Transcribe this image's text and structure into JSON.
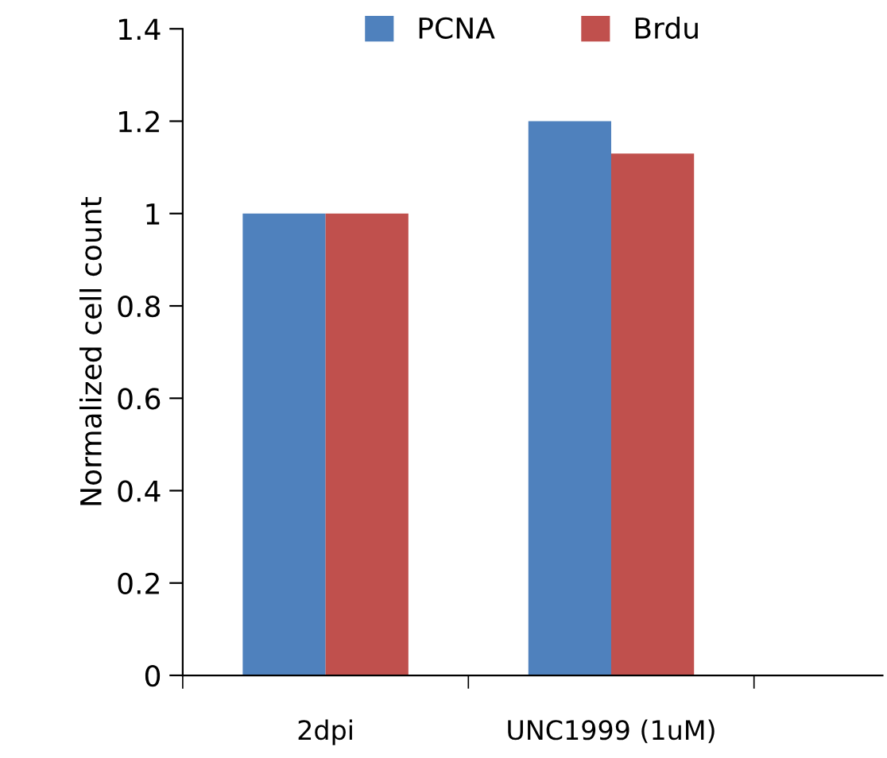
{
  "chart_data": {
    "type": "bar",
    "ylabel": "Normalized cell count",
    "categories": [
      "2dpi",
      "UNC1999 (1uM)"
    ],
    "series": [
      {
        "name": "PCNA",
        "color": "#4f81bd",
        "values": [
          1.0,
          1.2
        ]
      },
      {
        "name": "Brdu",
        "color": "#c0504d",
        "values": [
          1.0,
          1.13
        ]
      }
    ],
    "ylim": [
      0,
      1.4
    ],
    "yticks": [
      0,
      0.2,
      0.4,
      0.6,
      0.8,
      1,
      1.2,
      1.4
    ],
    "grid": false,
    "legend": "top"
  }
}
